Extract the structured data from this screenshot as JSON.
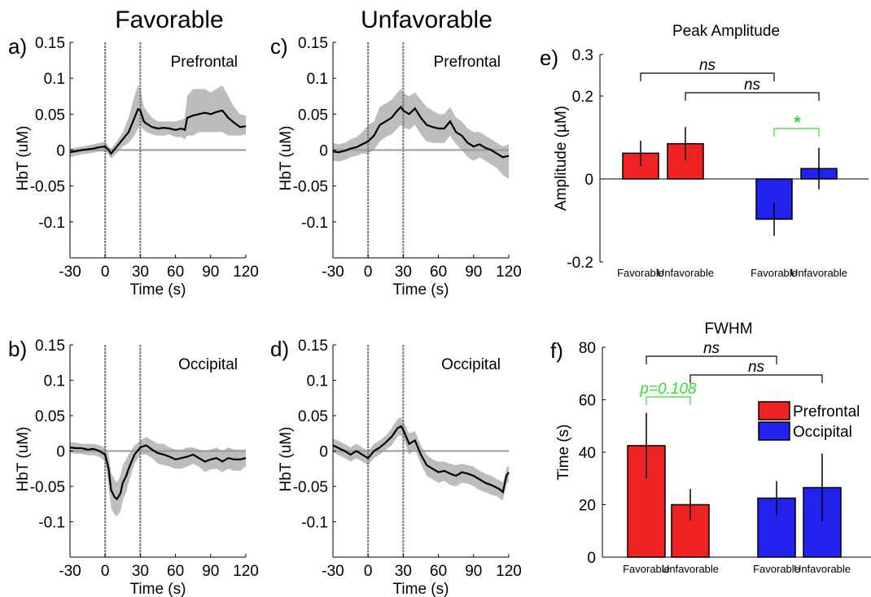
{
  "figure": {
    "col_titles": [
      "Favorable",
      "Unfavorable"
    ]
  },
  "chart_data": [
    {
      "id": "a",
      "panel_label": "a)",
      "type": "line",
      "region": "Prefrontal",
      "xlabel": "Time (s)",
      "ylabel": "HbT (uM)",
      "xlim": [
        -30,
        120
      ],
      "ylim": [
        -0.15,
        0.15
      ],
      "xticks": [
        "-30",
        "0",
        "30",
        "60",
        "90",
        "120"
      ],
      "yticks": [
        "0.15",
        "0.1",
        "0.05",
        "0",
        "-0.05",
        "-0.1"
      ],
      "vlines": [
        0,
        30
      ],
      "x": [
        -30,
        -20,
        -10,
        -5,
        0,
        3,
        5,
        10,
        15,
        20,
        25,
        28,
        30,
        33,
        35,
        40,
        45,
        50,
        55,
        60,
        65,
        68,
        70,
        75,
        80,
        85,
        90,
        95,
        100,
        105,
        110,
        115,
        120
      ],
      "y": [
        -0.003,
        0.0,
        0.002,
        0.004,
        0.005,
        0.0,
        -0.005,
        0.005,
        0.015,
        0.025,
        0.045,
        0.057,
        0.055,
        0.04,
        0.037,
        0.032,
        0.03,
        0.031,
        0.03,
        0.028,
        0.03,
        0.028,
        0.045,
        0.048,
        0.05,
        0.052,
        0.05,
        0.053,
        0.055,
        0.045,
        0.038,
        0.032,
        0.033
      ],
      "upper": [
        0.002,
        0.005,
        0.008,
        0.01,
        0.012,
        0.005,
        0.002,
        0.012,
        0.025,
        0.045,
        0.075,
        0.09,
        0.085,
        0.06,
        0.055,
        0.045,
        0.04,
        0.04,
        0.04,
        0.04,
        0.042,
        0.045,
        0.075,
        0.085,
        0.085,
        0.085,
        0.08,
        0.085,
        0.09,
        0.075,
        0.06,
        0.05,
        0.048
      ],
      "lower": [
        -0.01,
        -0.006,
        -0.004,
        -0.002,
        -0.002,
        -0.006,
        -0.012,
        -0.004,
        0.005,
        0.01,
        0.02,
        0.03,
        0.035,
        0.028,
        0.025,
        0.022,
        0.02,
        0.02,
        0.022,
        0.018,
        0.018,
        0.015,
        0.02,
        0.02,
        0.025,
        0.025,
        0.025,
        0.025,
        0.025,
        0.02,
        0.02,
        0.02,
        0.022
      ]
    },
    {
      "id": "c",
      "panel_label": "c)",
      "type": "line",
      "region": "Prefrontal",
      "xlabel": "Time (s)",
      "ylabel": "HbT (uM)",
      "xlim": [
        -30,
        120
      ],
      "ylim": [
        -0.15,
        0.15
      ],
      "xticks": [
        "-30",
        "0",
        "30",
        "60",
        "90",
        "120"
      ],
      "yticks": [
        "0.15",
        "0.1",
        "0.05",
        "0",
        "-0.05",
        "-0.1"
      ],
      "vlines": [
        0,
        30
      ],
      "x": [
        -30,
        -25,
        -20,
        -15,
        -10,
        -5,
        0,
        5,
        10,
        15,
        20,
        25,
        28,
        30,
        35,
        40,
        45,
        50,
        55,
        60,
        65,
        70,
        75,
        80,
        85,
        90,
        95,
        100,
        105,
        110,
        115,
        120
      ],
      "y": [
        -0.002,
        -0.003,
        -0.001,
        0.002,
        0.004,
        0.008,
        0.012,
        0.02,
        0.035,
        0.04,
        0.045,
        0.055,
        0.06,
        0.055,
        0.05,
        0.058,
        0.045,
        0.035,
        0.032,
        0.03,
        0.03,
        0.04,
        0.025,
        0.02,
        0.01,
        0.005,
        0.008,
        0.003,
        0.0,
        -0.005,
        -0.01,
        -0.008
      ],
      "upper": [
        0.01,
        0.008,
        0.01,
        0.015,
        0.018,
        0.025,
        0.035,
        0.04,
        0.06,
        0.065,
        0.07,
        0.08,
        0.085,
        0.08,
        0.075,
        0.08,
        0.07,
        0.06,
        0.055,
        0.05,
        0.05,
        0.06,
        0.045,
        0.04,
        0.03,
        0.025,
        0.025,
        0.02,
        0.015,
        0.01,
        0.005,
        0.008
      ],
      "lower": [
        -0.015,
        -0.016,
        -0.014,
        -0.01,
        -0.008,
        -0.005,
        -0.005,
        0.0,
        0.012,
        0.018,
        0.022,
        0.03,
        0.035,
        0.032,
        0.028,
        0.035,
        0.022,
        0.012,
        0.01,
        0.01,
        0.01,
        0.02,
        0.008,
        0.0,
        -0.01,
        -0.015,
        -0.01,
        -0.015,
        -0.02,
        -0.025,
        -0.035,
        -0.04
      ]
    },
    {
      "id": "b",
      "panel_label": "b)",
      "type": "line",
      "region": "Occipital",
      "xlabel": "Time (s)",
      "ylabel": "HbT (uM)",
      "xlim": [
        -30,
        120
      ],
      "ylim": [
        -0.15,
        0.15
      ],
      "xticks": [
        "-30",
        "0",
        "30",
        "60",
        "90",
        "120"
      ],
      "yticks": [
        "0.15",
        "0.1",
        "0.05",
        "0",
        "-0.05",
        "-0.1"
      ],
      "vlines": [
        0,
        30
      ],
      "x": [
        -30,
        -25,
        -20,
        -15,
        -10,
        -5,
        0,
        3,
        5,
        8,
        10,
        13,
        15,
        18,
        20,
        25,
        30,
        35,
        40,
        45,
        50,
        55,
        60,
        65,
        70,
        75,
        80,
        85,
        90,
        95,
        100,
        105,
        110,
        115,
        120
      ],
      "y": [
        0.005,
        0.004,
        0.004,
        0.002,
        0.003,
        0.0,
        -0.005,
        -0.025,
        -0.055,
        -0.065,
        -0.068,
        -0.06,
        -0.045,
        -0.035,
        -0.025,
        -0.005,
        0.005,
        0.008,
        0.002,
        -0.003,
        -0.005,
        -0.008,
        -0.012,
        -0.01,
        -0.008,
        -0.005,
        -0.01,
        -0.015,
        -0.012,
        -0.01,
        -0.015,
        -0.01,
        -0.012,
        -0.012,
        -0.01
      ],
      "upper": [
        0.012,
        0.012,
        0.01,
        0.01,
        0.01,
        0.008,
        0.005,
        -0.005,
        -0.03,
        -0.04,
        -0.045,
        -0.035,
        -0.02,
        -0.012,
        -0.005,
        0.008,
        0.015,
        0.02,
        0.015,
        0.01,
        0.01,
        0.005,
        0.002,
        0.002,
        0.005,
        0.005,
        0.002,
        0.0,
        0.002,
        0.005,
        0.0,
        0.005,
        0.002,
        0.002,
        0.002
      ],
      "lower": [
        -0.002,
        -0.004,
        -0.004,
        -0.006,
        -0.006,
        -0.008,
        -0.015,
        -0.05,
        -0.08,
        -0.09,
        -0.092,
        -0.085,
        -0.07,
        -0.058,
        -0.045,
        -0.018,
        -0.005,
        -0.005,
        -0.01,
        -0.018,
        -0.02,
        -0.022,
        -0.025,
        -0.025,
        -0.022,
        -0.018,
        -0.022,
        -0.03,
        -0.026,
        -0.025,
        -0.03,
        -0.025,
        -0.028,
        -0.028,
        -0.022
      ]
    },
    {
      "id": "d",
      "panel_label": "d)",
      "type": "line",
      "region": "Occipital",
      "xlabel": "Time (s)",
      "ylabel": "HbT (uM)",
      "xlim": [
        -30,
        120
      ],
      "ylim": [
        -0.15,
        0.15
      ],
      "xticks": [
        "-30",
        "0",
        "30",
        "60",
        "90",
        "120"
      ],
      "yticks": [
        "0.15",
        "0.1",
        "0.05",
        "0",
        "-0.05",
        "-0.1"
      ],
      "vlines": [
        0,
        30
      ],
      "x": [
        -30,
        -25,
        -20,
        -15,
        -10,
        -5,
        0,
        5,
        10,
        15,
        20,
        25,
        28,
        30,
        35,
        40,
        45,
        50,
        55,
        60,
        65,
        70,
        75,
        80,
        85,
        90,
        95,
        100,
        105,
        110,
        113,
        115,
        118,
        120
      ],
      "y": [
        0.008,
        0.004,
        0.0,
        -0.005,
        0.0,
        -0.005,
        -0.01,
        0.0,
        0.005,
        0.012,
        0.02,
        0.032,
        0.035,
        0.03,
        0.01,
        0.015,
        -0.005,
        -0.02,
        -0.025,
        -0.03,
        -0.028,
        -0.032,
        -0.035,
        -0.03,
        -0.032,
        -0.035,
        -0.04,
        -0.045,
        -0.048,
        -0.052,
        -0.055,
        -0.058,
        -0.035,
        -0.03
      ],
      "upper": [
        0.018,
        0.014,
        0.01,
        0.005,
        0.01,
        0.005,
        0.0,
        0.01,
        0.015,
        0.022,
        0.032,
        0.045,
        0.048,
        0.042,
        0.025,
        0.028,
        0.008,
        -0.005,
        -0.012,
        -0.015,
        -0.015,
        -0.018,
        -0.02,
        -0.018,
        -0.02,
        -0.022,
        -0.028,
        -0.032,
        -0.035,
        -0.04,
        -0.042,
        -0.045,
        -0.025,
        -0.02
      ],
      "lower": [
        -0.002,
        -0.006,
        -0.01,
        -0.015,
        -0.01,
        -0.015,
        -0.02,
        -0.01,
        -0.005,
        0.002,
        0.008,
        0.02,
        0.022,
        0.018,
        -0.005,
        0.002,
        -0.018,
        -0.035,
        -0.04,
        -0.045,
        -0.042,
        -0.048,
        -0.05,
        -0.045,
        -0.046,
        -0.05,
        -0.055,
        -0.058,
        -0.062,
        -0.064,
        -0.068,
        -0.07,
        -0.048,
        -0.042
      ]
    },
    {
      "id": "e",
      "panel_label": "e)",
      "type": "bar",
      "title": "Peak Amplitude",
      "ylabel": "Amplitude (µM)",
      "ylim": [
        -0.2,
        0.3
      ],
      "yticks": [
        "0.3",
        "0.2",
        "0",
        "-0.2"
      ],
      "categories": [
        "Favorable",
        "Unfavorable",
        "Favorable",
        "Unfavorable"
      ],
      "series": [
        {
          "name": "Prefrontal",
          "values": [
            0.062,
            0.085,
            null,
            null
          ],
          "errors": [
            0.03,
            0.04,
            null,
            null
          ]
        },
        {
          "name": "Occipital",
          "values": [
            null,
            null,
            -0.097,
            0.025
          ],
          "errors": [
            null,
            null,
            0.04,
            0.05
          ]
        }
      ],
      "annotations": [
        {
          "text": "ns",
          "from": 0,
          "to": 2,
          "color": "#000000"
        },
        {
          "text": "ns",
          "from": 1,
          "to": 3,
          "color": "#000000"
        },
        {
          "text": "*",
          "from": 2,
          "to": 3,
          "color": "#33dd33"
        }
      ]
    },
    {
      "id": "f",
      "panel_label": "f)",
      "type": "bar",
      "title": "FWHM",
      "ylabel": "Time (s)",
      "ylim": [
        0,
        80
      ],
      "yticks": [
        "80",
        "60",
        "40",
        "20",
        "0"
      ],
      "categories": [
        "Favorable",
        "Unfavorable",
        "Favorable",
        "Unfavorable"
      ],
      "series": [
        {
          "name": "Prefrontal",
          "values": [
            42.5,
            20,
            null,
            null
          ],
          "errors": [
            12.5,
            6,
            null,
            null
          ]
        },
        {
          "name": "Occipital",
          "values": [
            null,
            null,
            22.5,
            26.5
          ],
          "errors": [
            null,
            null,
            6.5,
            13
          ]
        }
      ],
      "legend": {
        "placement": "right",
        "entries": [
          "Prefrontal",
          "Occipital"
        ]
      },
      "annotations": [
        {
          "text": "ns",
          "from": 0,
          "to": 2,
          "color": "#000000"
        },
        {
          "text": "ns",
          "from": 1,
          "to": 3,
          "color": "#000000"
        },
        {
          "text": "p=0.108",
          "from": 0,
          "to": 1,
          "color": "#33dd33"
        }
      ]
    }
  ],
  "colors": {
    "prefrontal": "#ee2222",
    "occipital": "#2222ee",
    "significance": "#33dd33",
    "band": "#bdbdbd",
    "zero_line": "#999999"
  }
}
